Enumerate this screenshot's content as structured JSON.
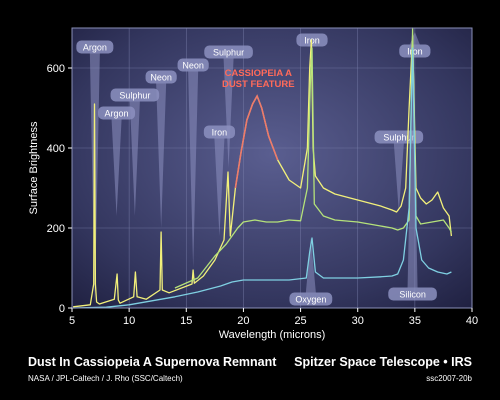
{
  "chart_data": {
    "type": "line",
    "xlabel": "Wavelength (microns)",
    "ylabel": "Surface Brightness",
    "xlim": [
      5,
      40
    ],
    "ylim": [
      0,
      700
    ],
    "xticks": [
      5,
      10,
      15,
      20,
      25,
      30,
      35,
      40
    ],
    "yticks": [
      0,
      200,
      400,
      600
    ],
    "grid": true,
    "feature_label": [
      "CASSIOPEIA A",
      "DUST FEATURE"
    ],
    "series": [
      {
        "color": "#f2f07a",
        "x": [
          5.1,
          6.6,
          6.9,
          6.97,
          7.05,
          7.15,
          7.4,
          8.7,
          8.95,
          9.05,
          9.2,
          10.4,
          10.55,
          10.7,
          11.5,
          12.7,
          12.8,
          12.9,
          13.5,
          15.5,
          15.6,
          15.7,
          16.5,
          17.5,
          18.3,
          18.65,
          18.85,
          19.3,
          19.8,
          20.3,
          20.8,
          21.2,
          21.6,
          22.2,
          23.0,
          24.0,
          25.0,
          25.6,
          25.8,
          25.95,
          26.1,
          26.3,
          27.0,
          28.0,
          30.0,
          32.0,
          33.0,
          33.4,
          33.8,
          34.2,
          34.5,
          34.8,
          35.1,
          35.5,
          36.0,
          36.5,
          37.0,
          37.5,
          38.0,
          38.2
        ],
        "y": [
          3,
          8,
          60,
          510,
          60,
          15,
          10,
          22,
          85,
          20,
          12,
          28,
          90,
          28,
          22,
          45,
          190,
          45,
          38,
          60,
          95,
          62,
          80,
          120,
          170,
          340,
          180,
          300,
          390,
          470,
          510,
          530,
          500,
          430,
          370,
          320,
          300,
          400,
          600,
          670,
          400,
          330,
          300,
          285,
          270,
          255,
          245,
          240,
          255,
          300,
          500,
          680,
          300,
          275,
          260,
          270,
          290,
          250,
          230,
          180
        ]
      },
      {
        "color": "#b5e27a",
        "x": [
          14.0,
          16.0,
          17.5,
          18.5,
          19.0,
          19.5,
          20.0,
          21.0,
          22.0,
          23.0,
          24.0,
          25.0,
          25.6,
          25.85,
          26.0,
          26.2,
          27.0,
          28.0,
          30.0,
          32.0,
          33.0,
          33.5,
          34.0,
          34.5,
          34.8,
          35.1,
          35.5,
          36.5,
          37.5,
          38.0,
          38.2
        ],
        "y": [
          50,
          75,
          130,
          160,
          180,
          200,
          215,
          220,
          215,
          215,
          220,
          218,
          300,
          560,
          650,
          260,
          230,
          220,
          215,
          205,
          200,
          195,
          200,
          220,
          700,
          230,
          210,
          215,
          220,
          200,
          190
        ]
      },
      {
        "color": "#7fd0e2",
        "x": [
          5.1,
          8.0,
          10.0,
          12.0,
          14.0,
          16.0,
          18.0,
          19.0,
          20.0,
          22.0,
          24.0,
          25.5,
          25.8,
          26.0,
          26.3,
          27.0,
          30.0,
          32.0,
          33.0,
          33.5,
          34.0,
          34.5,
          34.8,
          35.1,
          35.6,
          36.2,
          37.0,
          37.8,
          38.2
        ],
        "y": [
          0,
          2,
          8,
          18,
          28,
          40,
          55,
          65,
          70,
          70,
          70,
          75,
          140,
          175,
          90,
          75,
          75,
          78,
          80,
          85,
          120,
          250,
          650,
          200,
          120,
          100,
          90,
          85,
          90
        ]
      }
    ],
    "annotations": [
      {
        "text": "Argon",
        "x": 7.0,
        "y": 10
      },
      {
        "text": "Argon",
        "x": 8.9,
        "y": 230
      },
      {
        "text": "Sulphur",
        "x": 10.5,
        "y": 230
      },
      {
        "text": "Neon",
        "x": 12.8,
        "y": 200
      },
      {
        "text": "Neon",
        "x": 15.6,
        "y": 100
      },
      {
        "text": "Sulphur",
        "x": 18.7,
        "y": 350
      },
      {
        "text": "Iron",
        "x": 17.9,
        "y": 180
      },
      {
        "text": "Iron",
        "x": 26.0,
        "y": 670
      },
      {
        "text": "Oxygen",
        "x": 25.9,
        "y": 175
      },
      {
        "text": "Sulphur",
        "x": 33.6,
        "y": 240
      },
      {
        "text": "Iron",
        "x": 35.0,
        "y": 690
      },
      {
        "text": "Silicon",
        "x": 34.8,
        "y": 650
      }
    ]
  },
  "caption": {
    "title": "Dust In Cassiopeia A Supernova Remnant",
    "credit": "NASA / JPL-Caltech / J. Rho (SSC/Caltech)",
    "mission": "Spitzer Space Telescope • IRS",
    "id": "ssc2007-20b"
  }
}
